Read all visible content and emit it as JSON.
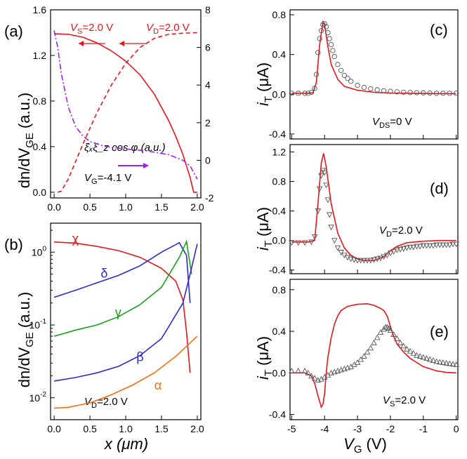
{
  "colors": {
    "red": "#e8141c",
    "purple": "#a020f0",
    "blue": "#2a2ad0",
    "green": "#18a018",
    "orange": "#f07010",
    "black": "#000000",
    "gray": "#555555"
  },
  "chart_data": [
    {
      "id": "a",
      "type": "line",
      "panel_label": "(a)",
      "xlabel": "",
      "ylabel": "dn/dV",
      "ylabel_sub": "GE",
      "ylabel_suffix": "(a.u.)",
      "xlim": [
        -0.05,
        2.05
      ],
      "ylim": [
        -0.05,
        1.6
      ],
      "y2lim": [
        -2,
        8
      ],
      "x_ticks": [
        "0.0",
        "0.5",
        "1.0",
        "1.5",
        "2.0"
      ],
      "y_ticks": [
        "0.0",
        "0.4",
        "0.8",
        "1.2",
        "1.6"
      ],
      "y2_ticks": [
        "-2",
        "0",
        "2",
        "4",
        "6",
        "8"
      ],
      "annotations": {
        "vs": "V",
        "vs_sub": "S",
        "vs_val": "=2.0 V",
        "vd": "V",
        "vd_sub": "D",
        "vd_val": "=2.0 V",
        "vg": "V",
        "vg_sub": "G",
        "vg_val": "=-4.1 V",
        "xi": "ξ̇ₓξ̇_z cos φ (a.u.)"
      },
      "series": [
        {
          "style": "solid-red",
          "axis": "left",
          "x": [
            0,
            0.2,
            0.4,
            0.6,
            0.8,
            1.0,
            1.2,
            1.4,
            1.6,
            1.7,
            1.8,
            1.9,
            1.95,
            2.0
          ],
          "y": [
            1.39,
            1.385,
            1.36,
            1.31,
            1.24,
            1.15,
            1.03,
            0.86,
            0.63,
            0.49,
            0.33,
            0.13,
            0.0,
            0.0
          ]
        },
        {
          "style": "dashed-red",
          "axis": "left",
          "x": [
            0.05,
            0.1,
            0.2,
            0.3,
            0.4,
            0.5,
            0.6,
            0.8,
            1.0,
            1.2,
            1.4,
            1.6,
            1.8,
            2.0
          ],
          "y": [
            0.0,
            0.01,
            0.12,
            0.27,
            0.42,
            0.56,
            0.7,
            0.94,
            1.13,
            1.27,
            1.35,
            1.385,
            1.395,
            1.4
          ]
        },
        {
          "style": "dashdot-purple",
          "axis": "right",
          "x": [
            0,
            0.05,
            0.1,
            0.2,
            0.3,
            0.4,
            0.5,
            0.7,
            1.0,
            1.3,
            1.6,
            1.8,
            1.9,
            2.0
          ],
          "y": [
            6.9,
            6.0,
            4.6,
            2.8,
            1.8,
            1.3,
            1.0,
            0.75,
            0.6,
            0.5,
            0.3,
            0.0,
            -0.3,
            -1.0
          ]
        }
      ]
    },
    {
      "id": "b",
      "type": "line",
      "panel_label": "(b)",
      "xlabel": "x (μm)",
      "ylabel": "dn/dV",
      "ylabel_sub": "GE",
      "ylabel_suffix": "(a.u.)",
      "yscale": "log",
      "xlim": [
        -0.05,
        2.05
      ],
      "ylim": [
        0.005,
        2.5
      ],
      "x_ticks": [
        "0.0",
        "0.5",
        "1.0",
        "1.5",
        "2.0"
      ],
      "y_ticks": [
        "10",
        "10",
        "10",
        "10"
      ],
      "y_tick_exps": [
        "-2",
        "-1",
        "0",
        ""
      ],
      "annotations": {
        "vd": "V",
        "vd_sub": "D",
        "vd_val": "=2.0 V"
      },
      "series": [
        {
          "name": "χ",
          "color": "red",
          "x": [
            0,
            0.3,
            0.6,
            0.9,
            1.2,
            1.5,
            1.7,
            1.8,
            1.85,
            1.9
          ],
          "y": [
            1.38,
            1.33,
            1.2,
            1.05,
            0.85,
            0.6,
            0.4,
            0.22,
            0.08,
            0.022
          ]
        },
        {
          "name": "δ",
          "color": "blue",
          "x": [
            0,
            0.3,
            0.6,
            0.9,
            1.2,
            1.5,
            1.75,
            1.85,
            1.9
          ],
          "y": [
            0.24,
            0.3,
            0.38,
            0.48,
            0.65,
            1.0,
            1.35,
            0.9,
            0.2
          ]
        },
        {
          "name": "γ",
          "color": "green",
          "x": [
            0,
            0.3,
            0.6,
            0.9,
            1.2,
            1.5,
            1.75,
            1.85,
            1.92
          ],
          "y": [
            0.07,
            0.085,
            0.1,
            0.13,
            0.19,
            0.33,
            0.85,
            1.4,
            0.5
          ]
        },
        {
          "name": "β",
          "color": "blue",
          "x": [
            0,
            0.3,
            0.6,
            0.9,
            1.2,
            1.5,
            1.8,
            1.9,
            2.0
          ],
          "y": [
            0.017,
            0.019,
            0.022,
            0.027,
            0.038,
            0.065,
            0.2,
            0.5,
            1.3
          ]
        },
        {
          "name": "α",
          "color": "orange",
          "x": [
            0,
            0.2,
            0.5,
            0.8,
            1.1,
            1.4,
            1.7,
            2.0
          ],
          "y": [
            0.0072,
            0.0074,
            0.0085,
            0.011,
            0.015,
            0.022,
            0.037,
            0.07
          ]
        }
      ]
    },
    {
      "id": "c",
      "type": "line",
      "panel_label": "(c)",
      "xlabel": "",
      "ylabel": "i",
      "ylabel_sub": "T",
      "ylabel_suffix": "(μA)",
      "xlim": [
        -5.05,
        0.05
      ],
      "ylim": [
        -0.45,
        0.85
      ],
      "y_ticks": [
        "-0.4",
        "0.0",
        "0.4",
        "0.8"
      ],
      "annotations": {
        "label": "V",
        "label_sub": "DS",
        "label_val": "=0 V"
      },
      "series": [
        {
          "style": "solid-red",
          "x": [
            -5,
            -4.5,
            -4.35,
            -4.25,
            -4.15,
            -4.05,
            -4.0,
            -3.9,
            -3.8,
            -3.6,
            -3.4,
            -3.0,
            -2.5,
            -2.0,
            -1.0,
            0
          ],
          "y": [
            0.01,
            0.01,
            0.015,
            0.12,
            0.5,
            0.73,
            0.7,
            0.48,
            0.3,
            0.15,
            0.08,
            0.04,
            0.02,
            0.012,
            0.008,
            0.005
          ]
        },
        {
          "style": "markers-circle",
          "x": [
            -5,
            -4.8,
            -4.6,
            -4.5,
            -4.4,
            -4.3,
            -4.25,
            -4.2,
            -4.15,
            -4.1,
            -4.05,
            -4.0,
            -3.95,
            -3.9,
            -3.85,
            -3.8,
            -3.75,
            -3.7,
            -3.6,
            -3.5,
            -3.4,
            -3.3,
            -3.2,
            -3.0,
            -2.8,
            -2.6,
            -2.4,
            -2.2,
            -2.0,
            -1.8,
            -1.6,
            -1.4,
            -1.2,
            -1.0,
            -0.8,
            -0.6,
            -0.4,
            -0.2,
            0
          ],
          "y": [
            0.01,
            0.01,
            0.01,
            0.01,
            0.02,
            0.06,
            0.2,
            0.42,
            0.56,
            0.64,
            0.7,
            0.71,
            0.68,
            0.62,
            0.56,
            0.5,
            0.44,
            0.38,
            0.3,
            0.24,
            0.19,
            0.16,
            0.13,
            0.09,
            0.07,
            0.055,
            0.045,
            0.035,
            0.03,
            0.025,
            0.02,
            0.018,
            0.016,
            0.014,
            0.012,
            0.01,
            0.01,
            0.01,
            0.01
          ]
        }
      ]
    },
    {
      "id": "d",
      "type": "line",
      "panel_label": "(d)",
      "xlabel": "",
      "ylabel": "i",
      "ylabel_sub": "T",
      "ylabel_suffix": "(μA)",
      "xlim": [
        -5.05,
        0.05
      ],
      "ylim": [
        -0.45,
        1.3
      ],
      "y_ticks": [
        "-0.4",
        "0.0",
        "0.4",
        "0.8",
        "1.2"
      ],
      "annotations": {
        "label": "V",
        "label_sub": "D",
        "label_val": "=2.0 V"
      },
      "series": [
        {
          "style": "solid-red",
          "x": [
            -5,
            -4.5,
            -4.3,
            -4.2,
            -4.1,
            -4.03,
            -3.95,
            -3.8,
            -3.6,
            -3.4,
            -3.2,
            -3.0,
            -2.8,
            -2.5,
            -2.2,
            -2.0,
            -1.8,
            -1.5,
            -1.0,
            -0.5,
            0
          ],
          "y": [
            -0.02,
            -0.02,
            0.0,
            0.5,
            1.05,
            1.18,
            1.0,
            0.5,
            0.1,
            -0.1,
            -0.2,
            -0.25,
            -0.27,
            -0.27,
            -0.22,
            -0.14,
            -0.08,
            -0.03,
            -0.01,
            0.0,
            0.0
          ]
        },
        {
          "style": "markers-triangle-down",
          "x": [
            -5,
            -4.8,
            -4.6,
            -4.4,
            -4.3,
            -4.2,
            -4.15,
            -4.1,
            -4.05,
            -4.0,
            -3.95,
            -3.9,
            -3.85,
            -3.8,
            -3.7,
            -3.6,
            -3.5,
            -3.4,
            -3.3,
            -3.2,
            -3.1,
            -3.0,
            -2.9,
            -2.8,
            -2.7,
            -2.6,
            -2.5,
            -2.4,
            -2.3,
            -2.2,
            -2.1,
            -2.0,
            -1.9,
            -1.8,
            -1.7,
            -1.6,
            -1.5,
            -1.4,
            -1.3,
            -1.2,
            -1.1,
            -1.0,
            -0.9,
            -0.8,
            -0.7,
            -0.6,
            -0.5,
            -0.4,
            -0.3,
            -0.2,
            -0.1,
            0
          ],
          "y": [
            -0.03,
            -0.03,
            -0.03,
            -0.02,
            0.05,
            0.4,
            0.7,
            0.88,
            0.95,
            0.92,
            0.75,
            0.55,
            0.35,
            0.18,
            0.0,
            -0.1,
            -0.16,
            -0.2,
            -0.23,
            -0.25,
            -0.26,
            -0.27,
            -0.27,
            -0.27,
            -0.27,
            -0.27,
            -0.26,
            -0.25,
            -0.24,
            -0.22,
            -0.2,
            -0.17,
            -0.15,
            -0.13,
            -0.12,
            -0.11,
            -0.1,
            -0.09,
            -0.09,
            -0.08,
            -0.08,
            -0.07,
            -0.07,
            -0.07,
            -0.07,
            -0.06,
            -0.06,
            -0.06,
            -0.06,
            -0.06,
            -0.05,
            -0.05
          ]
        }
      ]
    },
    {
      "id": "e",
      "type": "line",
      "panel_label": "(e)",
      "xlabel": "V",
      "xlabel_sub": "G",
      "xlabel_suffix": "(V)",
      "ylabel": "i",
      "ylabel_sub": "T",
      "ylabel_suffix": "(μA)",
      "xlim": [
        -5.05,
        0.05
      ],
      "ylim": [
        -0.45,
        0.9
      ],
      "x_ticks": [
        "-5",
        "-4",
        "-3",
        "-2",
        "-1",
        "0"
      ],
      "y_ticks": [
        "-0.4",
        "0.0",
        "0.4",
        "0.8"
      ],
      "annotations": {
        "label": "V",
        "label_sub": "S",
        "label_val": "=2.0 V"
      },
      "series": [
        {
          "style": "solid-red",
          "x": [
            -5,
            -4.6,
            -4.4,
            -4.3,
            -4.2,
            -4.1,
            -4.05,
            -4.0,
            -3.95,
            -3.9,
            -3.8,
            -3.7,
            -3.6,
            -3.5,
            -3.3,
            -3.0,
            -2.7,
            -2.5,
            -2.3,
            -2.2,
            -2.1,
            -2.0,
            -1.9,
            -1.8,
            -1.6,
            -1.4,
            -1.2,
            -1.0,
            -0.6,
            -0.3,
            0
          ],
          "y": [
            0.0,
            0.0,
            -0.03,
            -0.1,
            -0.22,
            -0.33,
            -0.3,
            -0.2,
            0.0,
            0.15,
            0.34,
            0.47,
            0.55,
            0.6,
            0.64,
            0.66,
            0.665,
            0.65,
            0.62,
            0.6,
            0.55,
            0.45,
            0.35,
            0.28,
            0.2,
            0.14,
            0.1,
            0.06,
            0.02,
            0.005,
            0.0
          ]
        },
        {
          "style": "markers-triangle-up",
          "x": [
            -5,
            -4.8,
            -4.6,
            -4.5,
            -4.4,
            -4.3,
            -4.2,
            -4.1,
            -4.0,
            -3.9,
            -3.8,
            -3.7,
            -3.6,
            -3.5,
            -3.4,
            -3.3,
            -3.2,
            -3.1,
            -3.0,
            -2.9,
            -2.8,
            -2.7,
            -2.6,
            -2.5,
            -2.4,
            -2.3,
            -2.2,
            -2.15,
            -2.1,
            -2.05,
            -2.0,
            -1.9,
            -1.8,
            -1.7,
            -1.6,
            -1.5,
            -1.4,
            -1.3,
            -1.2,
            -1.1,
            -1.0,
            -0.9,
            -0.8,
            -0.7,
            -0.6,
            -0.5,
            -0.4,
            -0.3,
            -0.2,
            -0.1,
            0
          ],
          "y": [
            0.02,
            0.02,
            0.02,
            0.0,
            -0.03,
            -0.05,
            -0.07,
            -0.06,
            -0.04,
            -0.02,
            0.0,
            0.01,
            0.02,
            0.03,
            0.04,
            0.05,
            0.06,
            0.08,
            0.1,
            0.13,
            0.16,
            0.2,
            0.24,
            0.29,
            0.34,
            0.39,
            0.42,
            0.44,
            0.44,
            0.43,
            0.41,
            0.37,
            0.33,
            0.29,
            0.26,
            0.23,
            0.21,
            0.19,
            0.17,
            0.16,
            0.15,
            0.14,
            0.13,
            0.12,
            0.11,
            0.105,
            0.1,
            0.095,
            0.09,
            0.085,
            0.08
          ]
        }
      ]
    }
  ]
}
